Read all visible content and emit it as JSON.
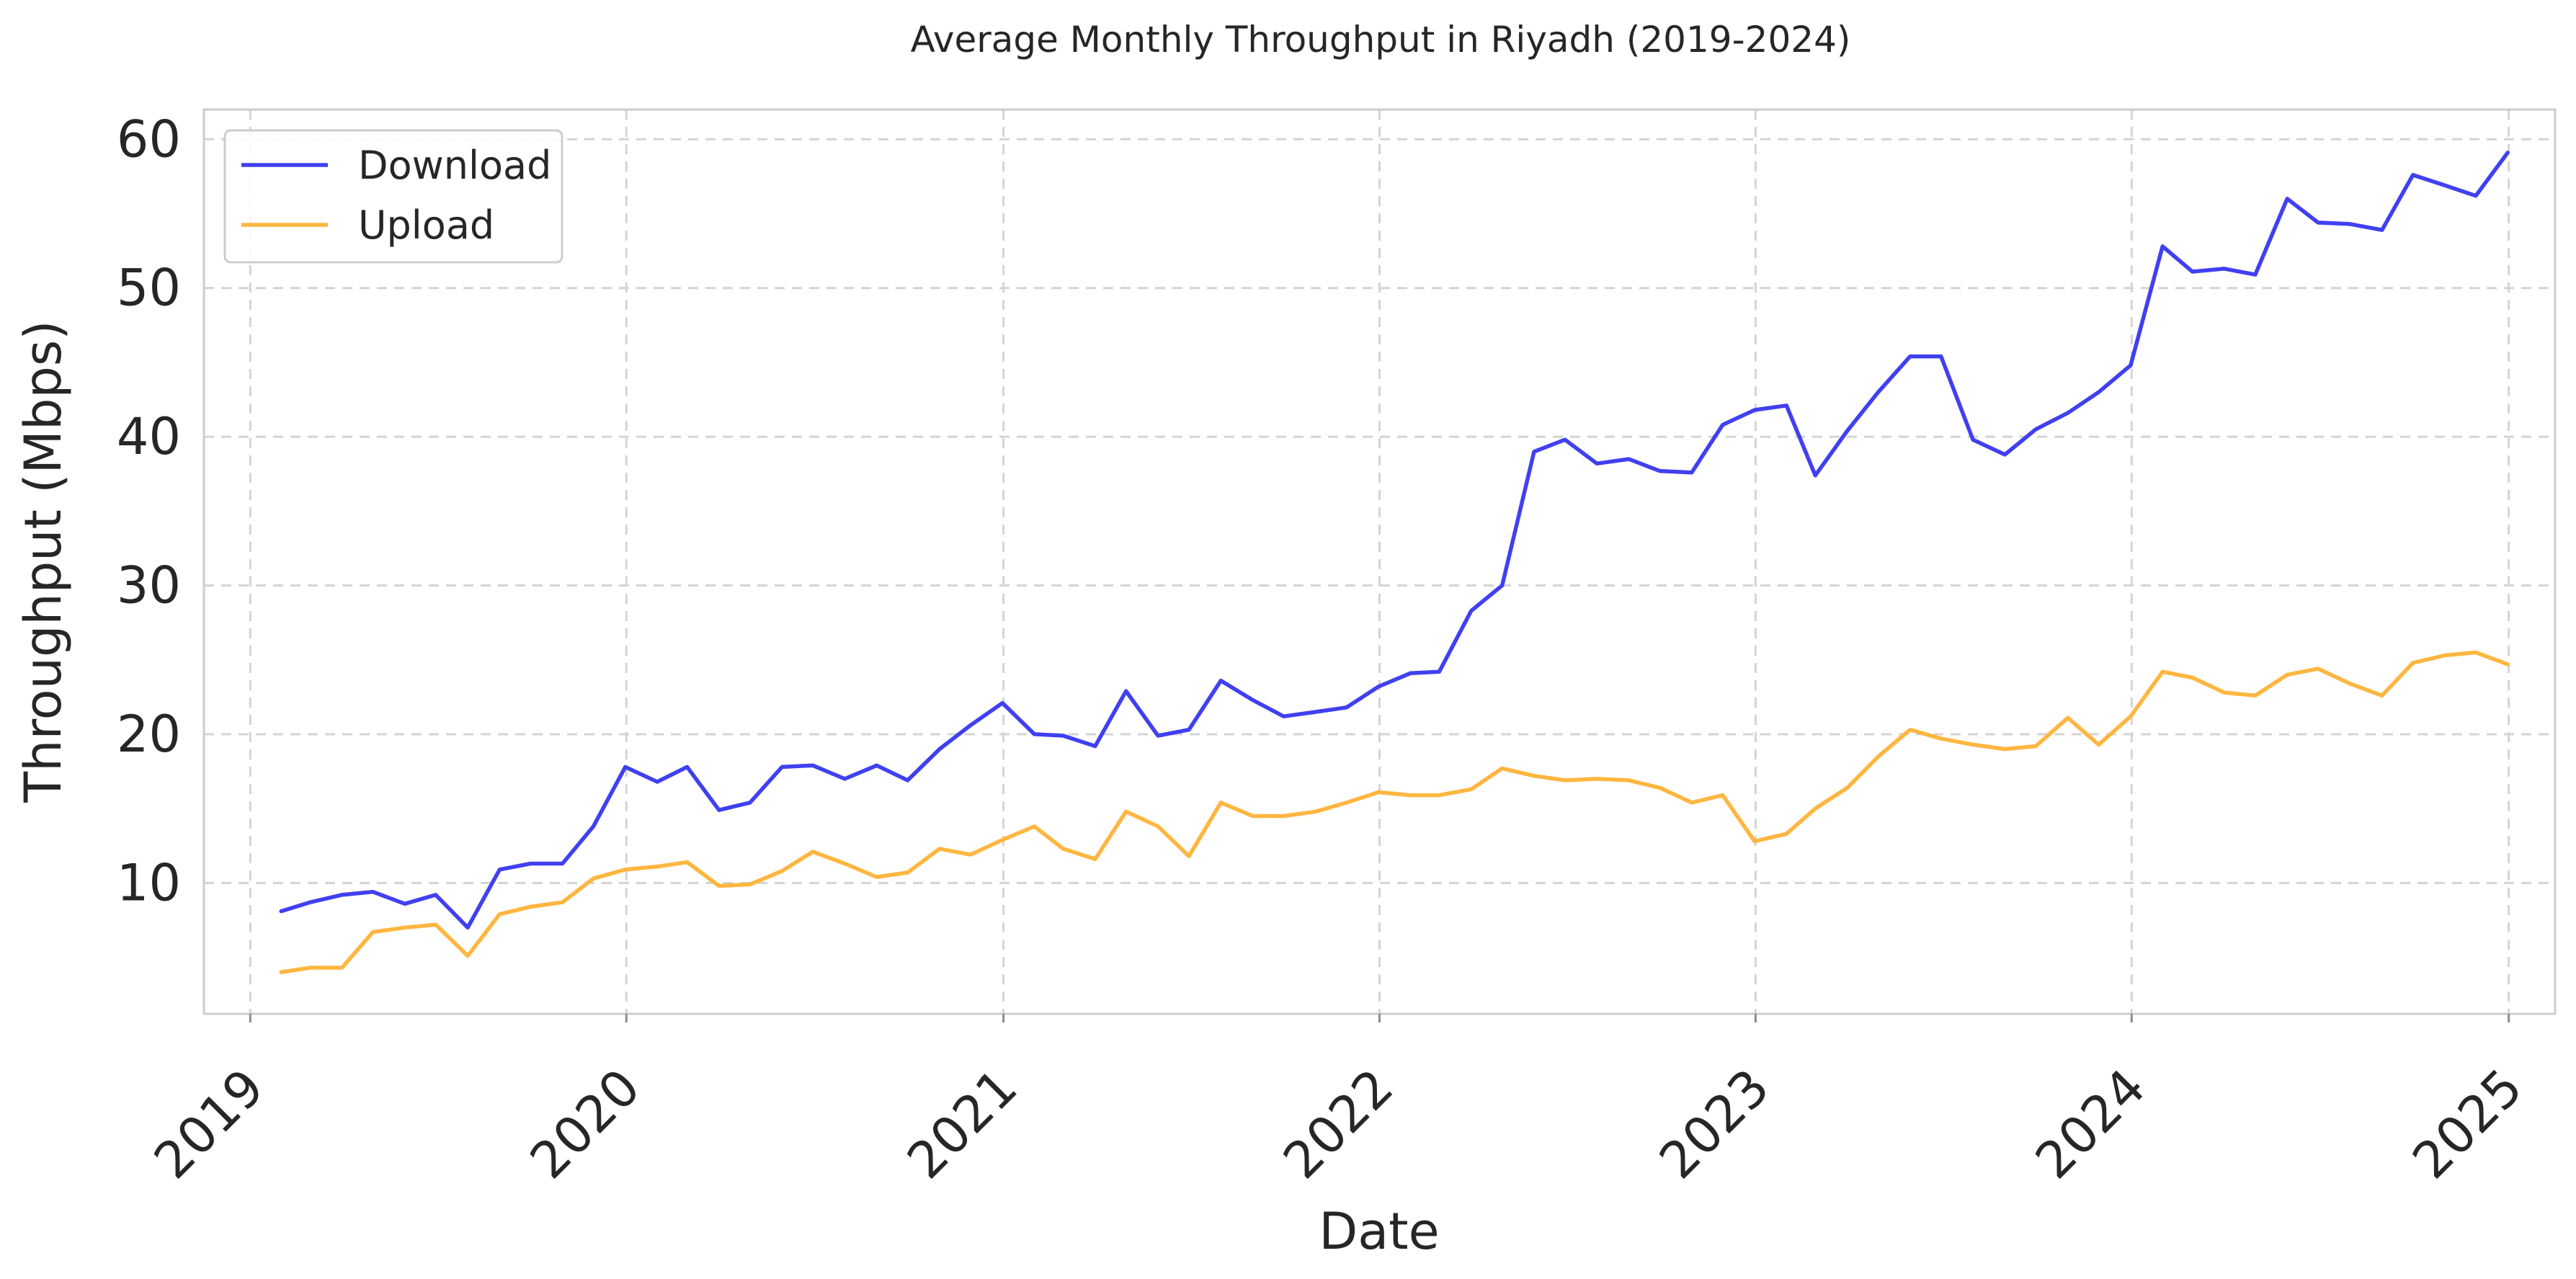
{
  "chart_data": {
    "type": "line",
    "title": "Average Monthly Throughput in Riyadh (2019-2024)",
    "xlabel": "Date",
    "ylabel": "Throughput (Mbps)",
    "x_axis": {
      "type": "date",
      "range": [
        "2018-11-17",
        "2025-02-15"
      ],
      "ticks": [
        "2019",
        "2020",
        "2021",
        "2022",
        "2023",
        "2024",
        "2025"
      ]
    },
    "y_axis": {
      "range": [
        1.2,
        62
      ],
      "ticks": [
        10,
        20,
        30,
        40,
        50,
        60
      ]
    },
    "grid": true,
    "legend": {
      "position": "top-left"
    },
    "x": [
      "2019-01-31",
      "2019-02-28",
      "2019-03-31",
      "2019-04-30",
      "2019-05-31",
      "2019-06-30",
      "2019-07-31",
      "2019-08-31",
      "2019-09-30",
      "2019-10-31",
      "2019-11-30",
      "2019-12-31",
      "2020-01-31",
      "2020-02-29",
      "2020-03-31",
      "2020-04-30",
      "2020-05-31",
      "2020-06-30",
      "2020-07-31",
      "2020-08-31",
      "2020-09-30",
      "2020-10-31",
      "2020-11-30",
      "2020-12-31",
      "2021-01-31",
      "2021-02-28",
      "2021-03-31",
      "2021-04-30",
      "2021-05-31",
      "2021-06-30",
      "2021-07-31",
      "2021-08-31",
      "2021-09-30",
      "2021-10-31",
      "2021-11-30",
      "2021-12-31",
      "2022-01-31",
      "2022-02-28",
      "2022-03-31",
      "2022-04-30",
      "2022-05-31",
      "2022-06-30",
      "2022-07-31",
      "2022-08-31",
      "2022-09-30",
      "2022-10-31",
      "2022-11-30",
      "2022-12-31",
      "2023-01-31",
      "2023-02-28",
      "2023-03-31",
      "2023-04-30",
      "2023-05-31",
      "2023-06-30",
      "2023-07-31",
      "2023-08-31",
      "2023-09-30",
      "2023-10-31",
      "2023-11-30",
      "2023-12-31",
      "2024-01-31",
      "2024-02-29",
      "2024-03-31",
      "2024-04-30",
      "2024-05-31",
      "2024-06-30",
      "2024-07-31",
      "2024-08-31",
      "2024-09-30",
      "2024-10-31",
      "2024-11-30",
      "2024-12-31"
    ],
    "series": [
      {
        "name": "Download",
        "color": "#4040f0",
        "values": [
          8.1,
          8.7,
          9.2,
          9.4,
          8.6,
          9.2,
          7.0,
          10.9,
          11.3,
          11.3,
          13.8,
          17.8,
          16.8,
          17.8,
          14.9,
          15.4,
          17.8,
          17.9,
          17.0,
          17.9,
          16.9,
          19.0,
          20.6,
          22.1,
          20.0,
          19.9,
          19.2,
          22.9,
          19.9,
          20.3,
          23.6,
          22.3,
          21.2,
          21.5,
          21.8,
          23.2,
          24.1,
          24.2,
          28.3,
          30.0,
          39.0,
          39.8,
          38.2,
          38.5,
          37.7,
          37.6,
          40.8,
          41.8,
          42.1,
          37.4,
          40.4,
          43.0,
          45.4,
          45.4,
          39.8,
          38.8,
          40.5,
          41.6,
          43.0,
          44.8,
          52.8,
          51.1,
          51.3,
          50.9,
          56.0,
          54.4,
          54.3,
          53.9,
          57.6,
          56.9,
          56.2,
          59.1
        ]
      },
      {
        "name": "Upload",
        "color": "#ffb640",
        "values": [
          4.0,
          4.3,
          4.3,
          6.7,
          7.0,
          7.2,
          5.1,
          7.9,
          8.4,
          8.7,
          10.3,
          10.9,
          11.1,
          11.4,
          9.8,
          9.9,
          10.8,
          12.1,
          11.3,
          10.4,
          10.7,
          12.3,
          11.9,
          12.9,
          13.8,
          12.3,
          11.6,
          14.8,
          13.8,
          11.8,
          15.4,
          14.5,
          14.5,
          14.8,
          15.4,
          16.1,
          15.9,
          15.9,
          16.3,
          17.7,
          17.2,
          16.9,
          17.0,
          16.9,
          16.4,
          15.4,
          15.9,
          12.8,
          13.3,
          15.0,
          16.4,
          18.5,
          20.3,
          19.7,
          19.3,
          19.0,
          19.2,
          21.1,
          19.3,
          21.2,
          24.2,
          23.8,
          22.8,
          22.6,
          24.0,
          24.4,
          23.4,
          22.6,
          24.8,
          25.3,
          25.5,
          24.7
        ]
      }
    ]
  }
}
